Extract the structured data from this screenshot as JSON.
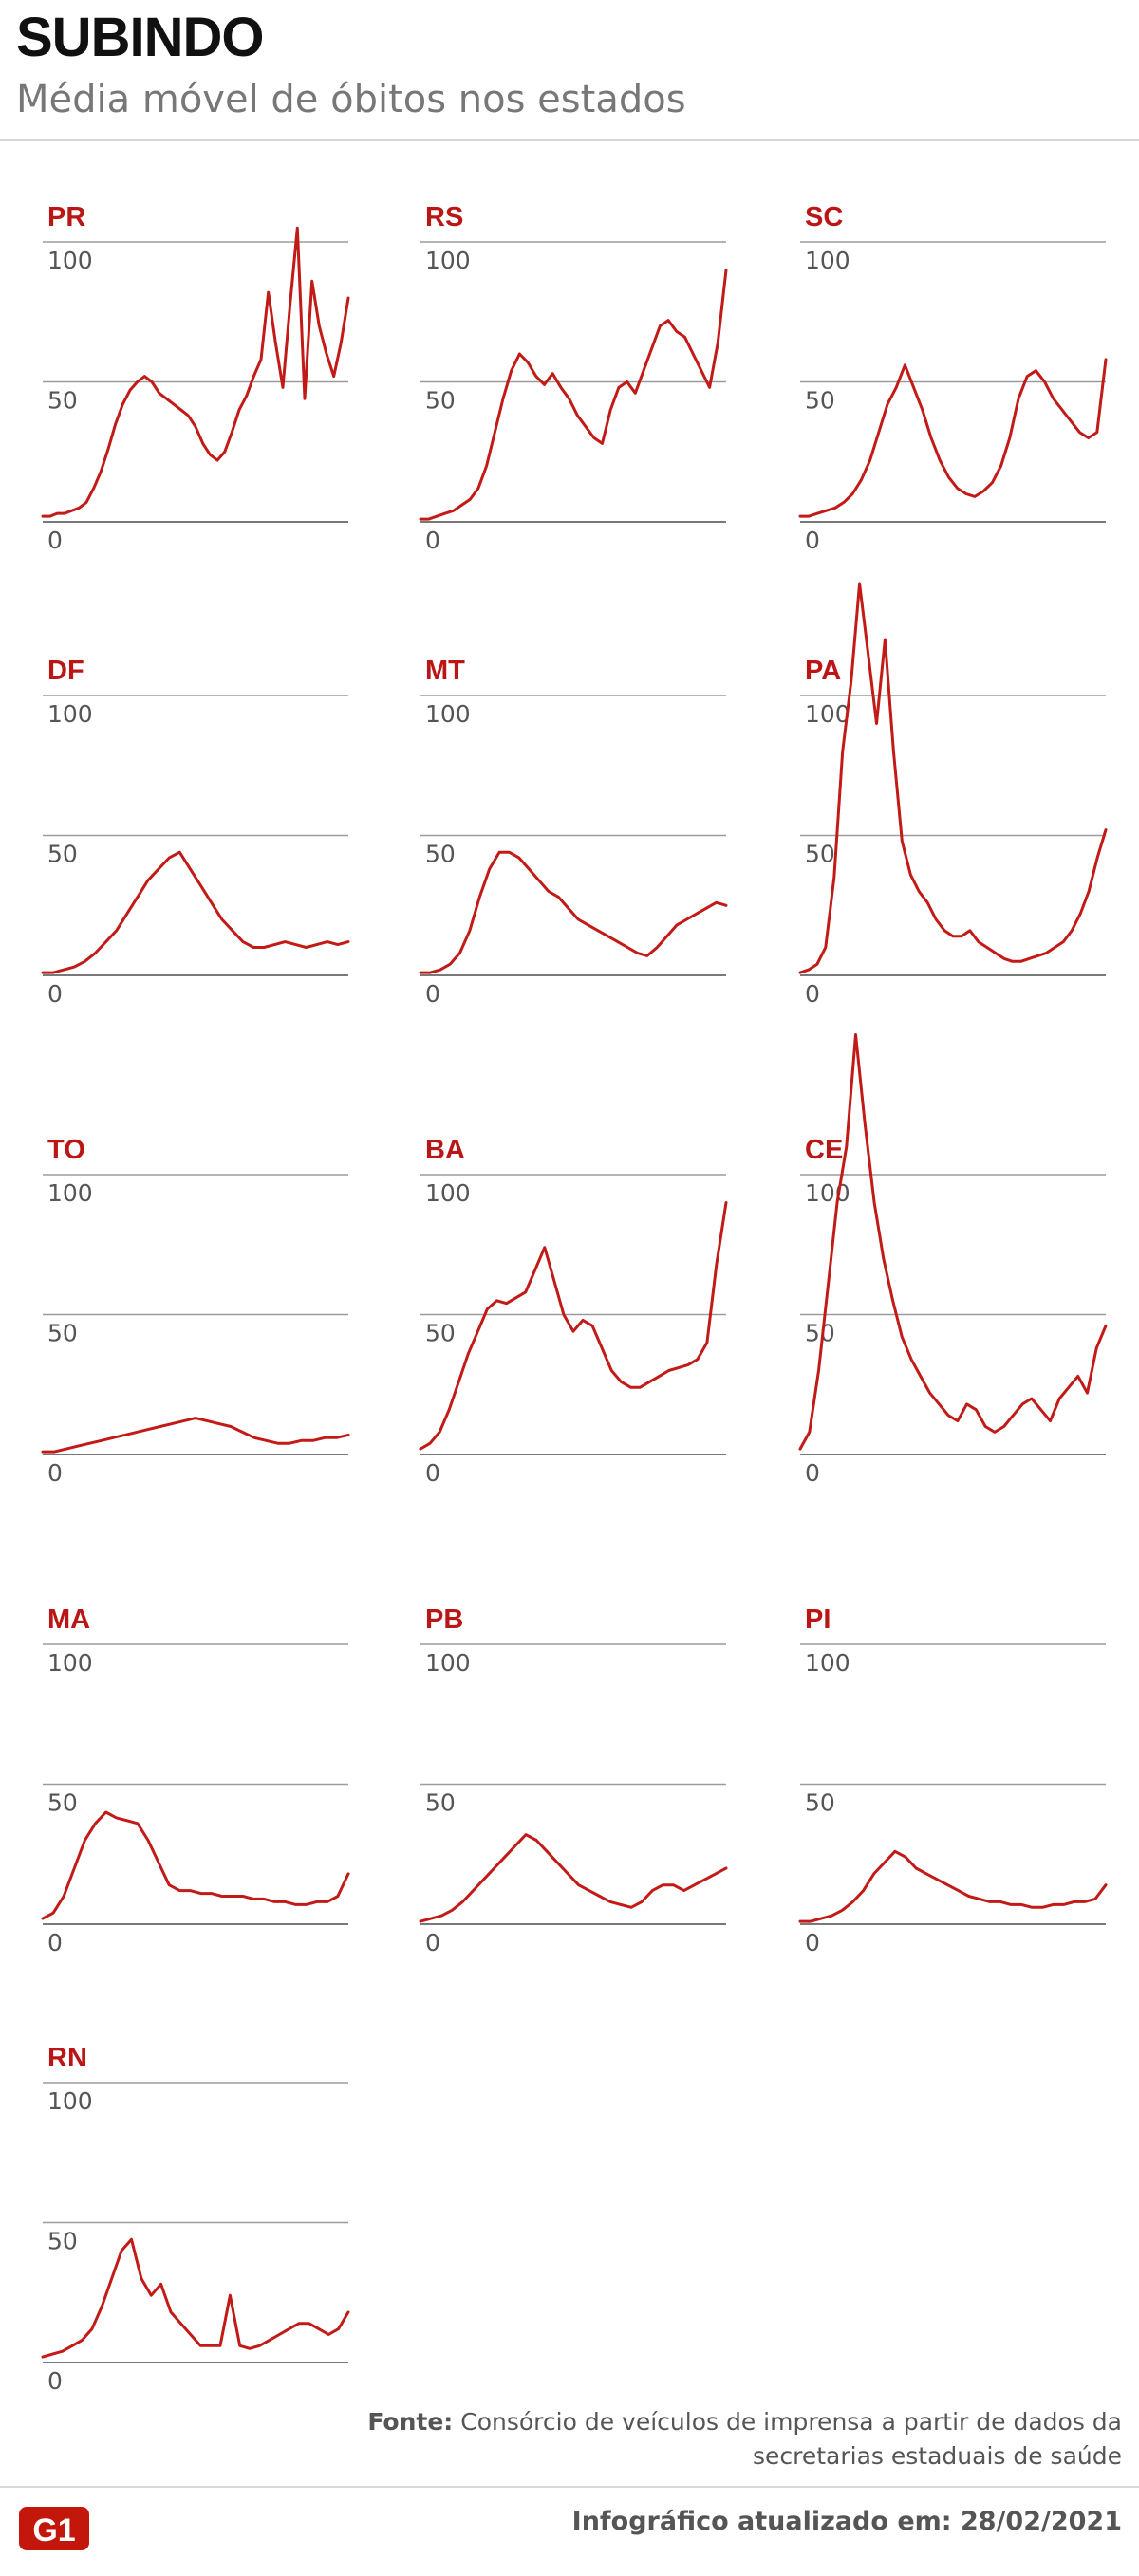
{
  "header": {
    "title": "SUBINDO",
    "subtitle": "Média móvel de óbitos nos estados"
  },
  "colors": {
    "accent": "#c21b17",
    "label": "#bb1616",
    "text_dark": "#111111",
    "text_gray": "#777777",
    "grid": "#9b9b9b"
  },
  "chart_data": [
    {
      "type": "line",
      "title": "PR",
      "yticks": [
        "100",
        "50",
        "0"
      ],
      "ylim": [
        0,
        100
      ],
      "grid": true,
      "series": [
        {
          "values": [
            2,
            2,
            3,
            3,
            4,
            5,
            7,
            12,
            18,
            26,
            35,
            42,
            47,
            50,
            52,
            50,
            46,
            44,
            42,
            40,
            38,
            34,
            28,
            24,
            22,
            25,
            32,
            40,
            45,
            52,
            58,
            82,
            64,
            48,
            78,
            105,
            44,
            86,
            70,
            60,
            52,
            64,
            80
          ]
        }
      ]
    },
    {
      "type": "line",
      "title": "RS",
      "yticks": [
        "100",
        "50",
        "0"
      ],
      "ylim": [
        0,
        100
      ],
      "grid": true,
      "series": [
        {
          "values": [
            1,
            1,
            2,
            3,
            4,
            6,
            8,
            12,
            20,
            32,
            44,
            54,
            60,
            57,
            52,
            49,
            53,
            48,
            44,
            38,
            34,
            30,
            28,
            40,
            48,
            50,
            46,
            54,
            62,
            70,
            72,
            68,
            66,
            60,
            54,
            48,
            64,
            90
          ]
        }
      ]
    },
    {
      "type": "line",
      "title": "SC",
      "yticks": [
        "100",
        "50",
        "0"
      ],
      "ylim": [
        0,
        100
      ],
      "grid": true,
      "series": [
        {
          "values": [
            2,
            2,
            3,
            4,
            5,
            7,
            10,
            15,
            22,
            32,
            42,
            48,
            56,
            48,
            40,
            30,
            22,
            16,
            12,
            10,
            9,
            11,
            14,
            20,
            30,
            44,
            52,
            54,
            50,
            44,
            40,
            36,
            32,
            30,
            32,
            58
          ]
        }
      ]
    },
    {
      "type": "line",
      "title": "DF",
      "yticks": [
        "100",
        "50",
        "0"
      ],
      "ylim": [
        0,
        100
      ],
      "grid": true,
      "series": [
        {
          "values": [
            1,
            1,
            2,
            3,
            5,
            8,
            12,
            16,
            22,
            28,
            34,
            38,
            42,
            44,
            38,
            32,
            26,
            20,
            16,
            12,
            10,
            10,
            11,
            12,
            11,
            10,
            11,
            12,
            11,
            12
          ]
        }
      ]
    },
    {
      "type": "line",
      "title": "MT",
      "yticks": [
        "100",
        "50",
        "0"
      ],
      "ylim": [
        0,
        100
      ],
      "grid": true,
      "series": [
        {
          "values": [
            1,
            1,
            2,
            4,
            8,
            16,
            28,
            38,
            44,
            44,
            42,
            38,
            34,
            30,
            28,
            24,
            20,
            18,
            16,
            14,
            12,
            10,
            8,
            7,
            10,
            14,
            18,
            20,
            22,
            24,
            26,
            25
          ]
        }
      ]
    },
    {
      "type": "line",
      "title": "PA",
      "yticks": [
        "100",
        "50",
        "0"
      ],
      "ylim": [
        0,
        100
      ],
      "grid": true,
      "series": [
        {
          "values": [
            1,
            2,
            4,
            10,
            35,
            80,
            105,
            140,
            115,
            90,
            120,
            80,
            48,
            36,
            30,
            26,
            20,
            16,
            14,
            14,
            16,
            12,
            10,
            8,
            6,
            5,
            5,
            6,
            7,
            8,
            10,
            12,
            16,
            22,
            30,
            42,
            52
          ]
        }
      ]
    },
    {
      "type": "line",
      "title": "TO",
      "yticks": [
        "100",
        "50",
        "0"
      ],
      "ylim": [
        0,
        100
      ],
      "grid": true,
      "series": [
        {
          "values": [
            1,
            1,
            2,
            3,
            4,
            5,
            6,
            7,
            8,
            9,
            10,
            11,
            12,
            13,
            12,
            11,
            10,
            8,
            6,
            5,
            4,
            4,
            5,
            5,
            6,
            6,
            7
          ]
        }
      ]
    },
    {
      "type": "line",
      "title": "BA",
      "yticks": [
        "100",
        "50",
        "0"
      ],
      "ylim": [
        0,
        100
      ],
      "grid": true,
      "series": [
        {
          "values": [
            2,
            4,
            8,
            16,
            26,
            36,
            44,
            52,
            55,
            54,
            56,
            58,
            66,
            74,
            62,
            50,
            44,
            48,
            46,
            38,
            30,
            26,
            24,
            24,
            26,
            28,
            30,
            31,
            32,
            34,
            40,
            68,
            90
          ]
        }
      ]
    },
    {
      "type": "line",
      "title": "CE",
      "yticks": [
        "100",
        "50",
        "0"
      ],
      "ylim": [
        0,
        100
      ],
      "grid": true,
      "series": [
        {
          "values": [
            2,
            8,
            30,
            60,
            90,
            110,
            150,
            118,
            90,
            70,
            55,
            42,
            34,
            28,
            22,
            18,
            14,
            12,
            18,
            16,
            10,
            8,
            10,
            14,
            18,
            20,
            16,
            12,
            20,
            24,
            28,
            22,
            38,
            46
          ]
        }
      ]
    },
    {
      "type": "line",
      "title": "MA",
      "yticks": [
        "100",
        "50",
        "0"
      ],
      "ylim": [
        0,
        100
      ],
      "grid": true,
      "series": [
        {
          "values": [
            2,
            4,
            10,
            20,
            30,
            36,
            40,
            38,
            37,
            36,
            30,
            22,
            14,
            12,
            12,
            11,
            11,
            10,
            10,
            10,
            9,
            9,
            8,
            8,
            7,
            7,
            8,
            8,
            10,
            18
          ]
        }
      ]
    },
    {
      "type": "line",
      "title": "PB",
      "yticks": [
        "100",
        "50",
        "0"
      ],
      "ylim": [
        0,
        100
      ],
      "grid": true,
      "series": [
        {
          "values": [
            1,
            2,
            3,
            5,
            8,
            12,
            16,
            20,
            24,
            28,
            32,
            30,
            26,
            22,
            18,
            14,
            12,
            10,
            8,
            7,
            6,
            8,
            12,
            14,
            14,
            12,
            14,
            16,
            18,
            20
          ]
        }
      ]
    },
    {
      "type": "line",
      "title": "PI",
      "yticks": [
        "100",
        "50",
        "0"
      ],
      "ylim": [
        0,
        100
      ],
      "grid": true,
      "series": [
        {
          "values": [
            1,
            1,
            2,
            3,
            5,
            8,
            12,
            18,
            22,
            26,
            24,
            20,
            18,
            16,
            14,
            12,
            10,
            9,
            8,
            8,
            7,
            7,
            6,
            6,
            7,
            7,
            8,
            8,
            9,
            14
          ]
        }
      ]
    },
    {
      "type": "line",
      "title": "RN",
      "yticks": [
        "100",
        "50",
        "0"
      ],
      "ylim": [
        0,
        100
      ],
      "grid": true,
      "series": [
        {
          "values": [
            2,
            3,
            4,
            6,
            8,
            12,
            20,
            30,
            40,
            44,
            30,
            24,
            28,
            18,
            14,
            10,
            6,
            6,
            6,
            24,
            6,
            5,
            6,
            8,
            10,
            12,
            14,
            14,
            12,
            10,
            12,
            18
          ]
        }
      ]
    }
  ],
  "footer": {
    "source_label": "Fonte:",
    "source_text": "Consórcio de veículos de imprensa a partir de dados da secretarias estaduais de saúde",
    "logo_text": "G1",
    "updated": "Infográfico atualizado em: 28/02/2021"
  }
}
